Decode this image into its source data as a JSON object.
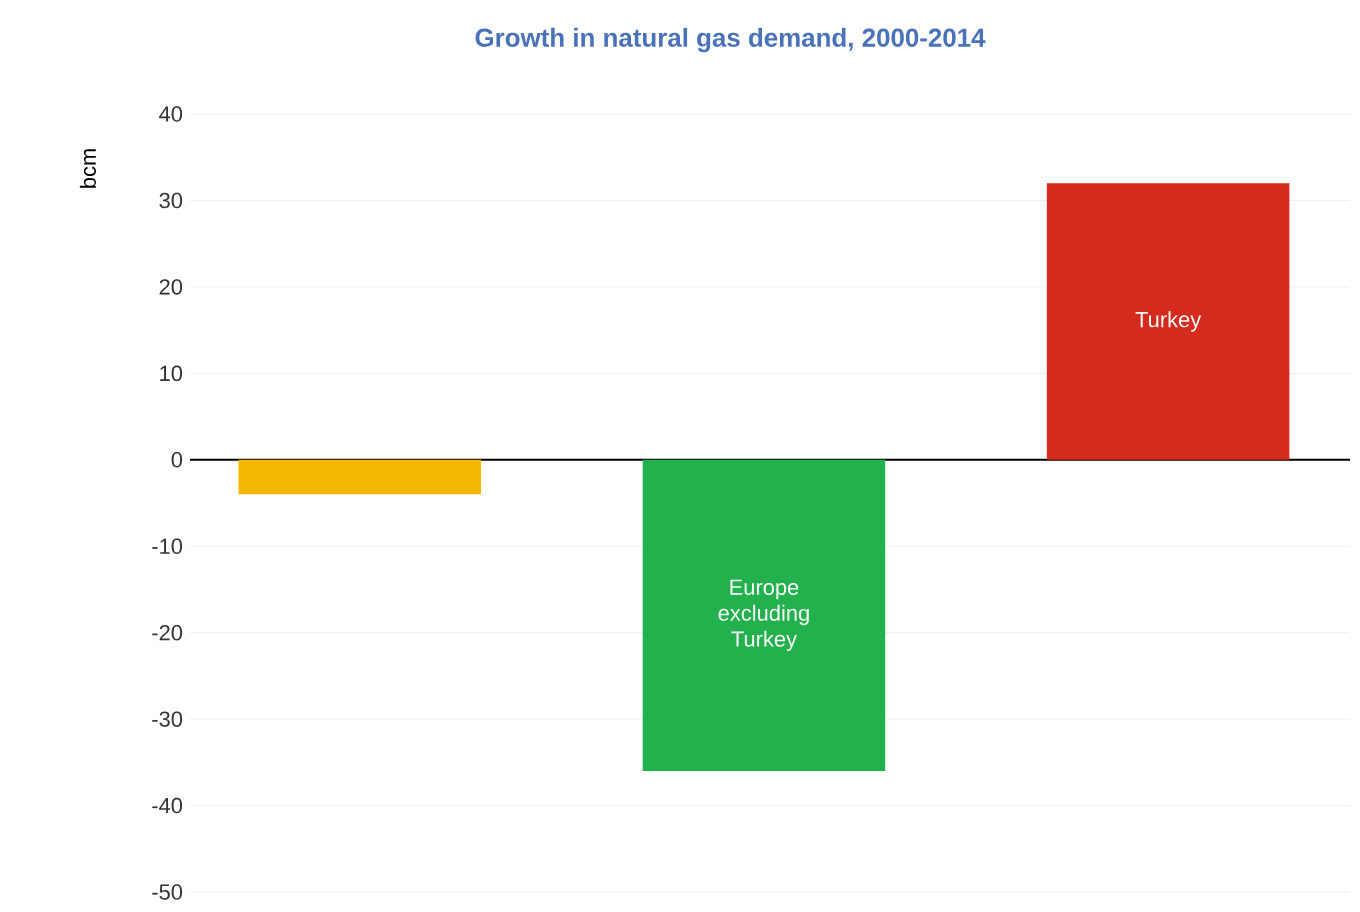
{
  "chart_data": {
    "type": "bar",
    "title": "Growth in natural gas demand, 2000-2014",
    "ylabel": "bcm",
    "categories": [
      null,
      "Europe excluding Turkey",
      "Turkey"
    ],
    "values": [
      -4,
      -36,
      32
    ],
    "colors": [
      "#f5b800",
      "#22b14c",
      "#d52a1e"
    ],
    "ylim": [
      -50,
      40
    ],
    "yticks": [
      -50,
      -40,
      -30,
      -20,
      -10,
      0,
      10,
      20,
      30,
      40
    ],
    "grid": "y"
  }
}
